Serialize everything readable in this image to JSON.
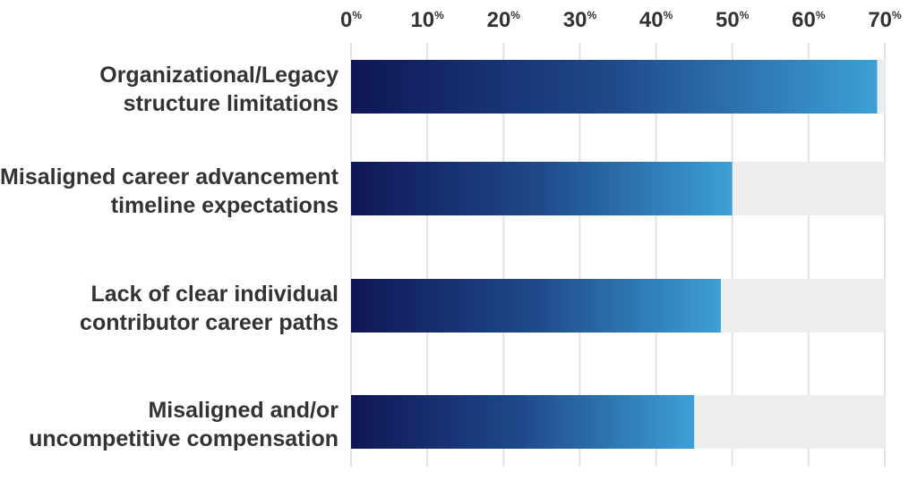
{
  "chart_data": {
    "type": "bar",
    "orientation": "horizontal",
    "title": "",
    "xlabel": "",
    "ylabel": "",
    "xlim": [
      0,
      70
    ],
    "x_ticks": [
      0,
      10,
      20,
      30,
      40,
      50,
      60,
      70
    ],
    "tick_suffix": "%",
    "grid": true,
    "legend": "none",
    "categories": [
      [
        "Organizational/Legacy",
        "structure limitations"
      ],
      [
        "Misaligned career advancement",
        "timeline expectations"
      ],
      [
        "Lack of clear individual",
        "contributor career paths"
      ],
      [
        "Misaligned and/or",
        "uncompetitive compensation"
      ]
    ],
    "values": [
      69,
      50,
      48.5,
      45
    ],
    "colors": {
      "bar_start": "#0f1656",
      "bar_mid": "#1f4a8a",
      "bar_end": "#3ca0d6",
      "track": "#ecedec",
      "grid": "#e3e3e3",
      "text": "#333333"
    }
  }
}
